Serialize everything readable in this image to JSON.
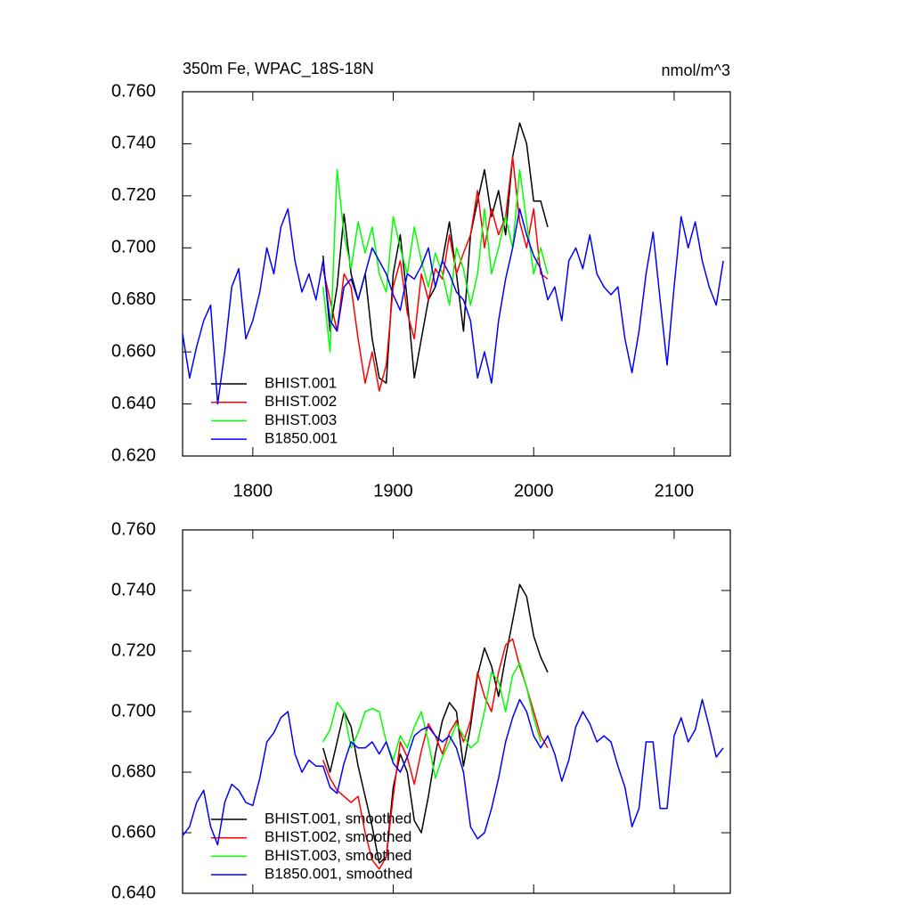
{
  "chart_data": [
    {
      "type": "line",
      "title": "350m Fe, WPAC_18S-18N",
      "units_label": "nmol/m^3",
      "x": [
        1750,
        1755,
        1760,
        1765,
        1770,
        1775,
        1780,
        1785,
        1790,
        1795,
        1800,
        1805,
        1810,
        1815,
        1820,
        1825,
        1830,
        1835,
        1840,
        1845,
        1850,
        1855,
        1860,
        1865,
        1870,
        1875,
        1880,
        1885,
        1890,
        1895,
        1900,
        1905,
        1910,
        1915,
        1920,
        1925,
        1930,
        1935,
        1940,
        1945,
        1950,
        1955,
        1960,
        1965,
        1970,
        1975,
        1980,
        1985,
        1990,
        1995,
        2000,
        2005,
        2010,
        2015,
        2020,
        2025,
        2030,
        2035,
        2040,
        2045,
        2050,
        2055,
        2060,
        2065,
        2070,
        2075,
        2080,
        2085,
        2090,
        2095,
        2100,
        2105,
        2110,
        2115,
        2120,
        2125,
        2130,
        2135
      ],
      "xlim": [
        1750,
        2140
      ],
      "xticks": [
        1800,
        1900,
        2000,
        2100
      ],
      "ylim": [
        0.62,
        0.76
      ],
      "yticks": [
        {
          "value": 0.62,
          "label": "0.620"
        },
        {
          "value": 0.64,
          "label": "0.640"
        },
        {
          "value": 0.66,
          "label": "0.660"
        },
        {
          "value": 0.68,
          "label": "0.680"
        },
        {
          "value": 0.7,
          "label": "0.700"
        },
        {
          "value": 0.72,
          "label": "0.720"
        },
        {
          "value": 0.74,
          "label": "0.740"
        },
        {
          "value": 0.76,
          "label": "0.760"
        }
      ],
      "legend": "lower left",
      "series": [
        {
          "name": "BHIST.001",
          "color": "#000000",
          "values": [
            null,
            null,
            null,
            null,
            null,
            null,
            null,
            null,
            null,
            null,
            null,
            null,
            null,
            null,
            null,
            null,
            null,
            null,
            null,
            null,
            0.697,
            0.668,
            0.685,
            0.713,
            0.69,
            0.68,
            0.69,
            0.665,
            0.65,
            0.648,
            0.69,
            0.705,
            0.68,
            0.65,
            0.665,
            0.68,
            0.685,
            0.695,
            0.71,
            0.69,
            0.668,
            0.705,
            0.718,
            0.73,
            0.712,
            0.722,
            0.705,
            0.735,
            0.748,
            0.74,
            0.718,
            0.718,
            0.708,
            null,
            null,
            null,
            null,
            null,
            null,
            null,
            null,
            null,
            null,
            null,
            null,
            null,
            null,
            null,
            null,
            null,
            null,
            null,
            null,
            null,
            null,
            null,
            null,
            null
          ]
        },
        {
          "name": "BHIST.002",
          "color": "#ff0000",
          "values": [
            null,
            null,
            null,
            null,
            null,
            null,
            null,
            null,
            null,
            null,
            null,
            null,
            null,
            null,
            null,
            null,
            null,
            null,
            null,
            null,
            0.692,
            0.68,
            0.668,
            0.69,
            0.685,
            0.665,
            0.648,
            0.66,
            0.645,
            0.655,
            0.685,
            0.695,
            0.675,
            0.665,
            0.69,
            0.68,
            0.692,
            0.688,
            0.705,
            0.69,
            0.698,
            0.705,
            0.722,
            0.7,
            0.715,
            0.705,
            0.712,
            0.735,
            0.71,
            0.7,
            0.715,
            0.69,
            0.688,
            null,
            null,
            null,
            null,
            null,
            null,
            null,
            null,
            null,
            null,
            null,
            null,
            null,
            null,
            null,
            null,
            null,
            null,
            null,
            null,
            null,
            null,
            null,
            null,
            null
          ]
        },
        {
          "name": "BHIST.003",
          "color": "#00ff00",
          "values": [
            null,
            null,
            null,
            null,
            null,
            null,
            null,
            null,
            null,
            null,
            null,
            null,
            null,
            null,
            null,
            null,
            null,
            null,
            null,
            null,
            0.685,
            0.66,
            0.73,
            0.705,
            0.692,
            0.71,
            0.698,
            0.708,
            0.69,
            0.683,
            0.712,
            0.7,
            0.69,
            0.708,
            0.695,
            0.685,
            0.698,
            0.69,
            0.678,
            0.7,
            0.692,
            0.678,
            0.69,
            0.715,
            0.69,
            0.7,
            0.712,
            0.7,
            0.73,
            0.71,
            0.69,
            0.7,
            0.69,
            null,
            null,
            null,
            null,
            null,
            null,
            null,
            null,
            null,
            null,
            null,
            null,
            null,
            null,
            null,
            null,
            null,
            null,
            null,
            null,
            null,
            null,
            null,
            null,
            null
          ]
        },
        {
          "name": "B1850.001",
          "color": "#0000ff",
          "values": [
            0.667,
            0.65,
            0.662,
            0.672,
            0.678,
            0.64,
            0.66,
            0.685,
            0.692,
            0.665,
            0.672,
            0.683,
            0.7,
            0.69,
            0.708,
            0.715,
            0.695,
            0.683,
            0.69,
            0.68,
            0.695,
            0.672,
            0.668,
            0.685,
            0.688,
            0.68,
            0.69,
            0.7,
            0.695,
            0.69,
            0.682,
            0.676,
            0.69,
            0.688,
            0.693,
            0.7,
            0.685,
            0.695,
            0.69,
            0.683,
            0.68,
            0.672,
            0.65,
            0.66,
            0.648,
            0.672,
            0.688,
            0.7,
            0.715,
            0.705,
            0.697,
            0.692,
            0.68,
            0.685,
            0.672,
            0.695,
            0.7,
            0.692,
            0.705,
            0.69,
            0.685,
            0.682,
            0.685,
            0.665,
            0.652,
            0.668,
            0.69,
            0.706,
            0.68,
            0.655,
            0.685,
            0.712,
            0.7,
            0.71,
            0.695,
            0.685,
            0.678,
            0.695
          ]
        }
      ]
    },
    {
      "type": "line",
      "x": [
        1750,
        1755,
        1760,
        1765,
        1770,
        1775,
        1780,
        1785,
        1790,
        1795,
        1800,
        1805,
        1810,
        1815,
        1820,
        1825,
        1830,
        1835,
        1840,
        1845,
        1850,
        1855,
        1860,
        1865,
        1870,
        1875,
        1880,
        1885,
        1890,
        1895,
        1900,
        1905,
        1910,
        1915,
        1920,
        1925,
        1930,
        1935,
        1940,
        1945,
        1950,
        1955,
        1960,
        1965,
        1970,
        1975,
        1980,
        1985,
        1990,
        1995,
        2000,
        2005,
        2010,
        2015,
        2020,
        2025,
        2030,
        2035,
        2040,
        2045,
        2050,
        2055,
        2060,
        2065,
        2070,
        2075,
        2080,
        2085,
        2090,
        2095,
        2100,
        2105,
        2110,
        2115,
        2120,
        2125,
        2130,
        2135
      ],
      "xlim": [
        1750,
        2140
      ],
      "xticks": [
        1800,
        1900,
        2000,
        2100
      ],
      "ylim": [
        0.64,
        0.76
      ],
      "yticks": [
        {
          "value": 0.64,
          "label": "0.640"
        },
        {
          "value": 0.66,
          "label": "0.660"
        },
        {
          "value": 0.68,
          "label": "0.680"
        },
        {
          "value": 0.7,
          "label": "0.700"
        },
        {
          "value": 0.72,
          "label": "0.720"
        },
        {
          "value": 0.74,
          "label": "0.740"
        },
        {
          "value": 0.76,
          "label": "0.760"
        }
      ],
      "legend": "lower left",
      "series": [
        {
          "name": "BHIST.001, smoothed",
          "color": "#000000",
          "values": [
            null,
            null,
            null,
            null,
            null,
            null,
            null,
            null,
            null,
            null,
            null,
            null,
            null,
            null,
            null,
            null,
            null,
            null,
            null,
            null,
            0.688,
            0.68,
            0.69,
            0.7,
            0.695,
            0.682,
            0.672,
            0.662,
            0.65,
            0.652,
            0.675,
            0.686,
            0.68,
            0.664,
            0.66,
            0.672,
            0.686,
            0.697,
            0.703,
            0.7,
            0.682,
            0.695,
            0.712,
            0.721,
            0.715,
            0.705,
            0.718,
            0.73,
            0.742,
            0.738,
            0.725,
            0.718,
            0.713,
            null,
            null,
            null,
            null,
            null,
            null,
            null,
            null,
            null,
            null,
            null,
            null,
            null,
            null,
            null,
            null,
            null,
            null,
            null,
            null,
            null,
            null,
            null,
            null,
            null
          ]
        },
        {
          "name": "BHIST.002, smoothed",
          "color": "#ff0000",
          "values": [
            null,
            null,
            null,
            null,
            null,
            null,
            null,
            null,
            null,
            null,
            null,
            null,
            null,
            null,
            null,
            null,
            null,
            null,
            null,
            null,
            0.684,
            0.678,
            0.674,
            0.672,
            0.67,
            0.672,
            0.66,
            0.651,
            0.648,
            0.652,
            0.672,
            0.69,
            0.685,
            0.676,
            0.687,
            0.696,
            0.692,
            0.686,
            0.693,
            0.697,
            0.69,
            0.697,
            0.713,
            0.705,
            0.7,
            0.713,
            0.722,
            0.724,
            0.715,
            0.708,
            0.7,
            0.692,
            0.688,
            null,
            null,
            null,
            null,
            null,
            null,
            null,
            null,
            null,
            null,
            null,
            null,
            null,
            null,
            null,
            null,
            null,
            null,
            null,
            null,
            null,
            null,
            null,
            null,
            null
          ]
        },
        {
          "name": "BHIST.003, smoothed",
          "color": "#00ff00",
          "values": [
            null,
            null,
            null,
            null,
            null,
            null,
            null,
            null,
            null,
            null,
            null,
            null,
            null,
            null,
            null,
            null,
            null,
            null,
            null,
            null,
            0.69,
            0.694,
            0.703,
            0.7,
            0.688,
            0.693,
            0.7,
            0.701,
            0.7,
            0.69,
            0.684,
            0.692,
            0.688,
            0.695,
            0.7,
            0.69,
            0.678,
            0.685,
            0.69,
            0.696,
            0.692,
            0.688,
            0.69,
            0.7,
            0.713,
            0.71,
            0.7,
            0.712,
            0.716,
            0.708,
            0.698,
            0.69,
            null,
            null,
            null,
            null,
            null,
            null,
            null,
            null,
            null,
            null,
            null,
            null,
            null,
            null,
            null,
            null,
            null,
            null,
            null,
            null,
            null,
            null,
            null,
            null,
            null,
            null
          ]
        },
        {
          "name": "B1850.001, smoothed",
          "color": "#0000ff",
          "values": [
            0.659,
            0.662,
            0.67,
            0.674,
            0.662,
            0.656,
            0.67,
            0.676,
            0.674,
            0.67,
            0.669,
            0.678,
            0.69,
            0.693,
            0.698,
            0.7,
            0.686,
            0.68,
            0.684,
            0.682,
            0.682,
            0.675,
            0.673,
            0.683,
            0.69,
            0.688,
            0.688,
            0.69,
            0.686,
            0.69,
            0.683,
            0.68,
            0.685,
            0.692,
            0.694,
            0.695,
            0.692,
            0.69,
            0.692,
            0.688,
            0.68,
            0.662,
            0.658,
            0.66,
            0.668,
            0.678,
            0.69,
            0.698,
            0.704,
            0.7,
            0.692,
            0.688,
            0.692,
            0.686,
            0.677,
            0.684,
            0.695,
            0.7,
            0.696,
            0.69,
            0.692,
            0.69,
            0.682,
            0.675,
            0.662,
            0.668,
            0.69,
            0.69,
            0.668,
            0.668,
            0.692,
            0.698,
            0.69,
            0.694,
            0.704,
            0.695,
            0.685,
            0.688
          ]
        }
      ]
    }
  ]
}
